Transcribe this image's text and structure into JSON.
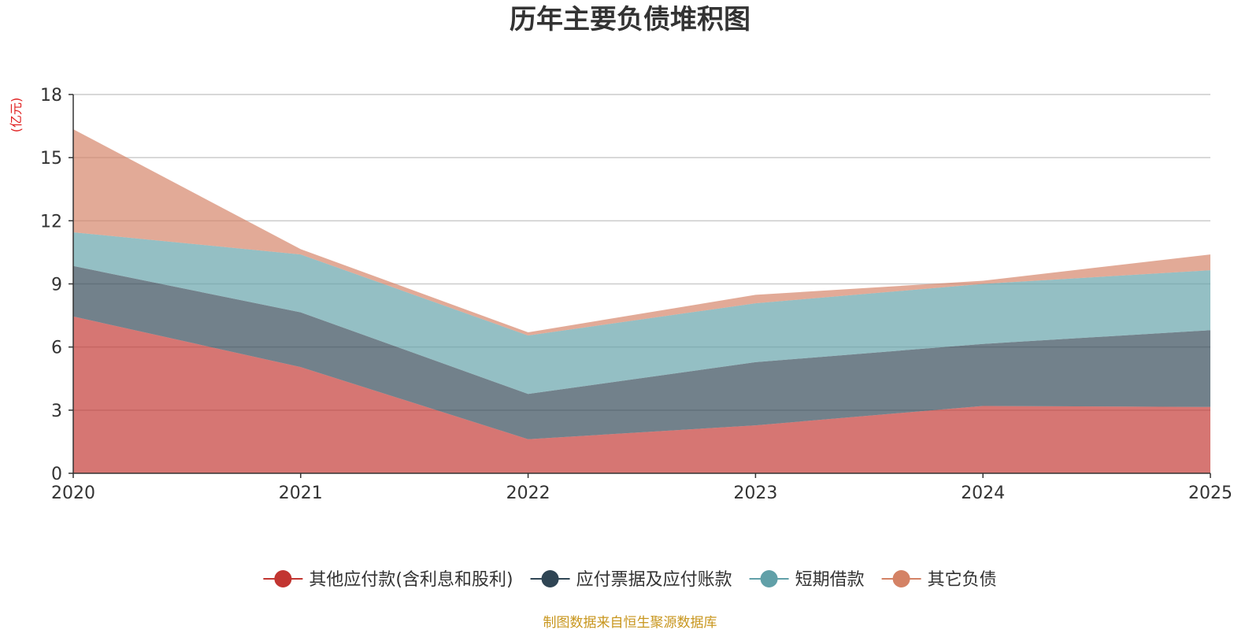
{
  "chart_data": {
    "type": "area",
    "stacked": true,
    "title": "历年主要负债堆积图",
    "ylabel": "(亿元)",
    "xlabel": "",
    "categories": [
      "2020",
      "2021",
      "2022",
      "2023",
      "2024",
      "2025"
    ],
    "ylim": [
      0,
      18
    ],
    "yticks": [
      0,
      3,
      6,
      9,
      12,
      15,
      18
    ],
    "grid": true,
    "legend_position": "bottom",
    "series": [
      {
        "name": "其他应付款(含利息和股利)",
        "color": "#c23531",
        "values": [
          7.45,
          5.05,
          1.62,
          2.28,
          3.2,
          3.15
        ]
      },
      {
        "name": "应付票据及应付账款",
        "color": "#2f4554",
        "values": [
          2.4,
          2.6,
          2.15,
          3.0,
          2.95,
          3.65
        ]
      },
      {
        "name": "短期借款",
        "color": "#61a0a8",
        "values": [
          1.6,
          2.75,
          2.78,
          2.8,
          2.85,
          2.85
        ]
      },
      {
        "name": "其它负债",
        "color": "#d48265",
        "values": [
          4.9,
          0.25,
          0.15,
          0.4,
          0.15,
          0.75
        ]
      }
    ],
    "source": "制图数据来自恒生聚源数据库"
  }
}
